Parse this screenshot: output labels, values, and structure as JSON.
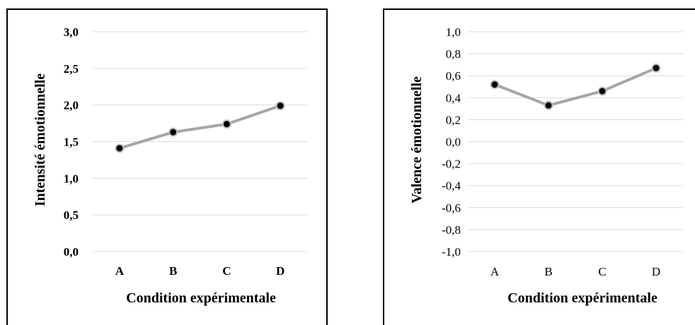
{
  "chart_data": [
    {
      "type": "line",
      "categories": [
        "A",
        "B",
        "C",
        "D"
      ],
      "series": [
        {
          "values": [
            1.41,
            1.63,
            1.74,
            1.99
          ]
        }
      ],
      "y_ticks": [
        "0,0",
        "0,5",
        "1,0",
        "1,5",
        "2,0",
        "2,5",
        "3,0"
      ],
      "ylim": [
        0,
        3
      ],
      "xlabel": "Condition expérimentale",
      "ylabel": "Intensité émotionnelle",
      "grid": true,
      "legend": "none",
      "colors": {
        "line": "#a6a6a6",
        "marker": "#000000",
        "grid": "#d9d9d9"
      }
    },
    {
      "type": "line",
      "categories": [
        "A",
        "B",
        "C",
        "D"
      ],
      "series": [
        {
          "values": [
            0.52,
            0.33,
            0.46,
            0.67
          ]
        }
      ],
      "y_ticks": [
        "-1,0",
        "-0,8",
        "-0,6",
        "-0,4",
        "-0,2",
        "0,0",
        "0,2",
        "0,4",
        "0,6",
        "0,8",
        "1,0"
      ],
      "ylim": [
        -1,
        1
      ],
      "xlabel": "Condition expérimentale",
      "ylabel": "Valence émotionnelle",
      "grid": true,
      "legend": "none",
      "colors": {
        "line": "#a6a6a6",
        "marker": "#000000",
        "grid": "#d9d9d9"
      }
    }
  ]
}
